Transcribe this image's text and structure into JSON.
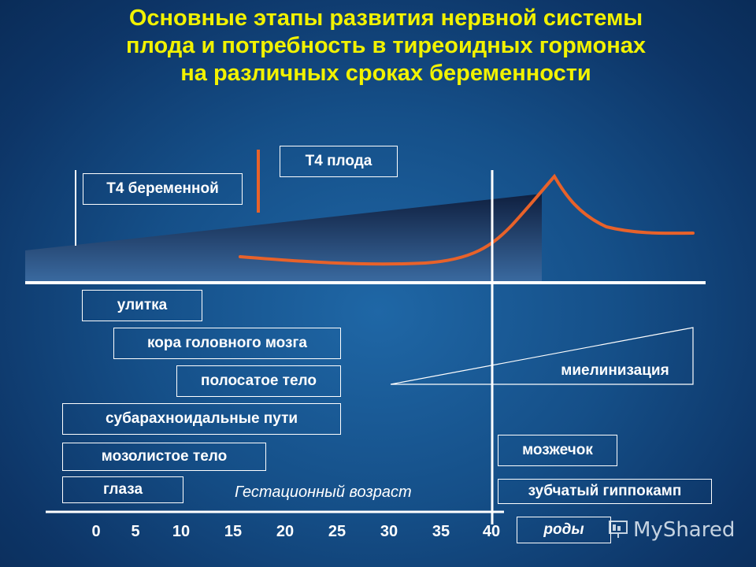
{
  "title": {
    "line1": "Основные этапы развития нервной системы",
    "line2": "плода и потребность в тиреоидных гормонах",
    "line3": "на различных сроках беременности"
  },
  "hormones": {
    "maternal_t4": "Т4 беременной",
    "fetal_t4": "Т4 плода"
  },
  "stages": {
    "cochlea": "улитка",
    "cortex": "кора головного мозга",
    "striatum": "полосатое тело",
    "subarachnoid": "субарахноидальные пути",
    "corpus_callosum": "мозолистое тело",
    "eyes": "глаза",
    "myelination": "миелинизация",
    "cerebellum": "мозжечок",
    "dentate_hippocampus": "зубчатый гиппокамп"
  },
  "axis": {
    "label": "Гестационный возраст",
    "birth": "роды",
    "ticks": [
      "0",
      "5",
      "10",
      "15",
      "20",
      "25",
      "30",
      "35",
      "40"
    ]
  },
  "colors": {
    "title": "#f2f200",
    "curve": "#e8622a",
    "lines": "#ffffff"
  },
  "watermark": "MyShared"
}
